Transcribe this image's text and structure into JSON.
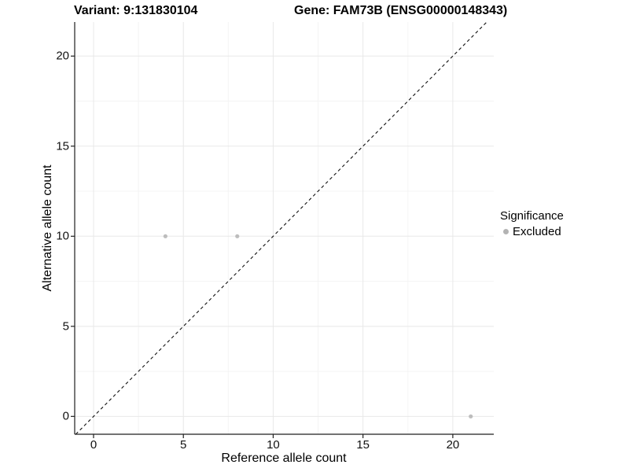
{
  "header": {
    "variant_title": "Variant: 9:131830104",
    "gene_title": "Gene: FAM73B (ENSG00000148343)"
  },
  "chart_data": {
    "type": "scatter",
    "xlabel": "Reference allele count",
    "ylabel": "Alternative allele count",
    "x_ticks": [
      0,
      5,
      10,
      15,
      20
    ],
    "y_ticks": [
      0,
      5,
      10,
      15,
      20
    ],
    "x_minor": [
      2.5,
      7.5,
      12.5,
      17.5
    ],
    "y_minor": [
      2.5,
      7.5,
      12.5,
      17.5
    ],
    "xlim": [
      -1.05,
      22.28
    ],
    "ylim": [
      -0.99,
      21.89
    ],
    "grid": "major+minor",
    "identity_line": {
      "slope": 1,
      "intercept": 0,
      "style": "dashed"
    },
    "series": [
      {
        "name": "Excluded",
        "color": "#bdbdbd",
        "points": [
          [
            4,
            10
          ],
          [
            8,
            10
          ],
          [
            21,
            0
          ]
        ]
      }
    ],
    "legend": {
      "title": "Significance",
      "position": "right",
      "items": [
        {
          "label": "Excluded",
          "color": "#b3b3b3"
        }
      ]
    }
  },
  "colors": {
    "background": "#ffffff",
    "major_grid": "#e8e8e8",
    "minor_grid": "#f4f4f4",
    "axis": "#1f1f1f",
    "tick_text": "#111111",
    "identity_line": "#111111"
  }
}
